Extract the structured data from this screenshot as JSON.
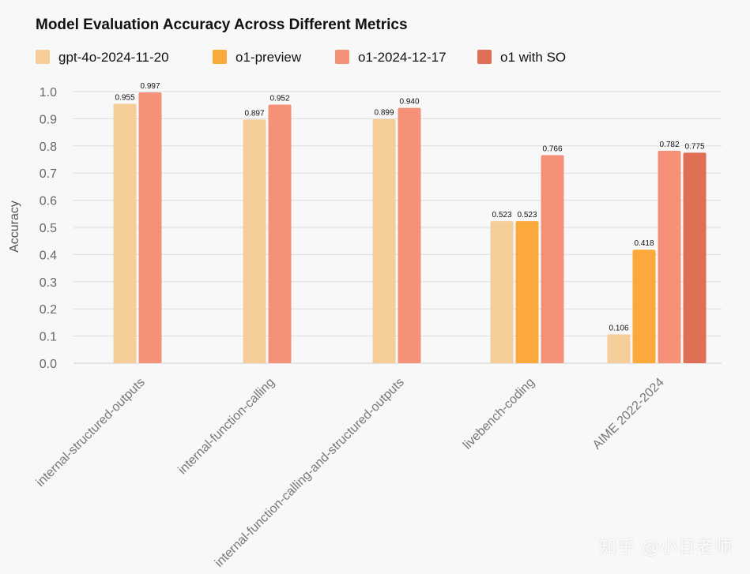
{
  "chart_data": {
    "type": "bar",
    "title": "Model Evaluation Accuracy Across Different Metrics",
    "xlabel": "",
    "ylabel": "Accuracy",
    "ylim": [
      0,
      1.05
    ],
    "yticks": [
      "0.0",
      "0.1",
      "0.2",
      "0.3",
      "0.4",
      "0.5",
      "0.6",
      "0.7",
      "0.8",
      "0.9",
      "1.0"
    ],
    "grid": true,
    "legend_position": "top-left",
    "categories": [
      "internal-structured-outputs",
      "internal-function-calling",
      "internal-function-calling-and-structured-outputs",
      "livebench-coding",
      "AIME 2022-2024"
    ],
    "series": [
      {
        "name": "gpt-4o-2024-11-20",
        "color": "#f5cd98",
        "values": [
          0.955,
          0.897,
          0.899,
          0.523,
          0.106
        ],
        "labels": [
          "0.955",
          "0.897",
          "0.899",
          "0.523",
          "0.106"
        ]
      },
      {
        "name": "o1-preview",
        "color": "#fba93a",
        "values": [
          null,
          null,
          null,
          0.523,
          0.418
        ],
        "labels": [
          null,
          null,
          null,
          "0.523",
          "0.418"
        ]
      },
      {
        "name": "o1-2024-12-17",
        "color": "#f59179",
        "values": [
          0.997,
          0.952,
          0.94,
          0.766,
          0.782
        ],
        "labels": [
          "0.997",
          "0.952",
          "0.940",
          "0.766",
          "0.782"
        ]
      },
      {
        "name": "o1 with SO",
        "color": "#e07055",
        "values": [
          null,
          null,
          null,
          null,
          0.775
        ],
        "labels": [
          null,
          null,
          null,
          null,
          "0.775"
        ]
      }
    ]
  },
  "watermark": "知乎 @小日老师"
}
